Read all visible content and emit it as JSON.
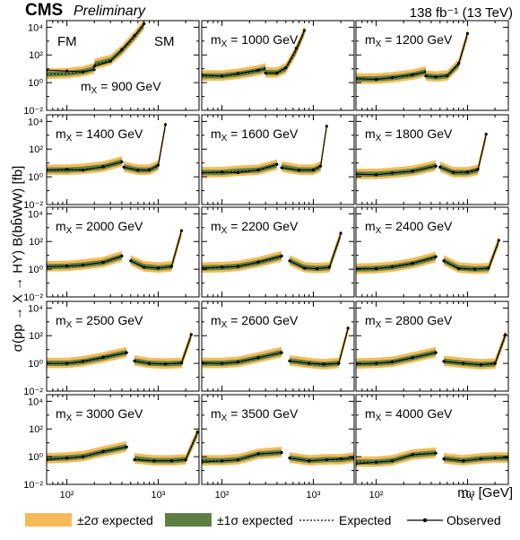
{
  "header": {
    "experiment": "CMS",
    "status": "Preliminary",
    "luminosity": "138 fb⁻¹ (13 TeV)"
  },
  "axes": {
    "ylabel": "σ(pp → X → HY) B(bb̄WW) [fb]",
    "xlabel": "m_Y [GeV]"
  },
  "legend": {
    "two_sigma": "±2σ expected",
    "one_sigma": "±1σ expected",
    "expected": "Expected",
    "observed": "Observed"
  },
  "colors": {
    "two_sigma": "#f5bb58",
    "one_sigma": "#5e7f44",
    "line": "#000000"
  },
  "chart_data": {
    "type": "line",
    "grid": "3 columns x 5 rows of panels",
    "x_scale": "log",
    "y_scale": "log",
    "xlim": [
      60,
      2800
    ],
    "ylim": [
      0.01,
      30000
    ],
    "x_ticks": [
      100,
      1000
    ],
    "x_tick_labels": [
      "10²",
      "10³"
    ],
    "y_ticks": [
      0.01,
      1,
      100,
      10000
    ],
    "y_tick_labels": [
      "10⁻²",
      "10⁰",
      "10²",
      "10⁴"
    ],
    "region_labels": [
      "FM",
      "SM"
    ],
    "panels": [
      {
        "label": "m_X = 900 GeV",
        "mx": 900,
        "fm": {
          "x": [
            60,
            100,
            150,
            200
          ],
          "exp": [
            4,
            4.5,
            6,
            10
          ],
          "obs": [
            8,
            7,
            6,
            9
          ]
        },
        "sm": {
          "x": [
            200,
            300,
            400,
            550,
            700
          ],
          "exp": [
            20,
            40,
            200,
            2000,
            15000
          ],
          "obs": [
            15,
            35,
            250,
            2500,
            18000
          ]
        }
      },
      {
        "label": "m_X = 1000 GeV",
        "mx": 1000,
        "fm": {
          "x": [
            60,
            100,
            150,
            250,
            300
          ],
          "exp": [
            3,
            3,
            4,
            7,
            10
          ],
          "obs": [
            3.5,
            3,
            4.5,
            8,
            10
          ]
        },
        "sm": {
          "x": [
            300,
            400,
            500,
            650,
            800
          ],
          "exp": [
            5,
            5,
            10,
            200,
            5000
          ],
          "obs": [
            5,
            5,
            12,
            300,
            6000
          ]
        }
      },
      {
        "label": "m_X = 1200 GeV",
        "mx": 1200,
        "fm": {
          "x": [
            60,
            100,
            150,
            250,
            350
          ],
          "exp": [
            1.8,
            1.8,
            2.2,
            3.5,
            6
          ],
          "obs": [
            2,
            1.7,
            2.3,
            3.8,
            6
          ]
        },
        "sm": {
          "x": [
            350,
            450,
            600,
            800,
            1000
          ],
          "exp": [
            3,
            2.5,
            3,
            20,
            3000
          ],
          "obs": [
            3,
            2.6,
            3.2,
            25,
            3500
          ]
        }
      },
      {
        "label": "m_X = 1400 GeV",
        "mx": 1400,
        "fm": {
          "x": [
            60,
            100,
            150,
            250,
            400
          ],
          "exp": [
            3,
            3,
            3.5,
            5,
            12
          ],
          "obs": [
            3,
            3.5,
            3,
            5.5,
            12
          ]
        },
        "sm": {
          "x": [
            420,
            600,
            800,
            1000,
            1200
          ],
          "exp": [
            5,
            3,
            3,
            6,
            5000
          ],
          "obs": [
            5,
            3,
            3.2,
            7,
            6000
          ]
        }
      },
      {
        "label": "m_X = 1600 GeV",
        "mx": 1600,
        "fm": {
          "x": [
            60,
            100,
            150,
            250,
            400
          ],
          "exp": [
            2,
            2,
            2.5,
            3,
            7
          ],
          "obs": [
            2,
            2.2,
            2,
            3.2,
            8
          ]
        },
        "sm": {
          "x": [
            450,
            700,
            1000,
            1200,
            1400
          ],
          "exp": [
            5,
            3,
            3,
            5,
            4000
          ],
          "obs": [
            4.5,
            3,
            3.2,
            6,
            4500
          ]
        }
      },
      {
        "label": "m_X = 1800 GeV",
        "mx": 1800,
        "fm": {
          "x": [
            60,
            100,
            150,
            250,
            450
          ],
          "exp": [
            1.5,
            1.5,
            1.8,
            2.5,
            6
          ],
          "obs": [
            1.6,
            1.4,
            1.9,
            2.6,
            6
          ]
        },
        "sm": {
          "x": [
            500,
            700,
            1000,
            1300,
            1600
          ],
          "exp": [
            5,
            2,
            2,
            3,
            1000
          ],
          "obs": [
            5,
            2.1,
            2.2,
            3.5,
            1200
          ]
        }
      },
      {
        "label": "m_X = 2000 GeV",
        "mx": 2000,
        "fm": {
          "x": [
            60,
            100,
            150,
            250,
            400
          ],
          "exp": [
            1.5,
            1.6,
            2,
            3,
            8
          ],
          "obs": [
            1.5,
            1.7,
            2,
            3.2,
            9
          ]
        },
        "sm": {
          "x": [
            500,
            700,
            1000,
            1400,
            1800
          ],
          "exp": [
            4,
            1.5,
            1.2,
            1.5,
            500
          ],
          "obs": [
            4,
            1.4,
            1.2,
            1.6,
            600
          ]
        }
      },
      {
        "label": "m_X = 2200 GeV",
        "mx": 2200,
        "fm": {
          "x": [
            60,
            100,
            150,
            250,
            450
          ],
          "exp": [
            1.2,
            1.3,
            1.6,
            3,
            8
          ],
          "obs": [
            1.2,
            1.4,
            1.6,
            3.3,
            9
          ]
        },
        "sm": {
          "x": [
            550,
            800,
            1100,
            1500,
            2000
          ],
          "exp": [
            4,
            1.3,
            1.1,
            1.3,
            300
          ],
          "obs": [
            4,
            1.2,
            1.1,
            1.4,
            400
          ]
        }
      },
      {
        "label": "m_X = 2400 GeV",
        "mx": 2400,
        "fm": {
          "x": [
            60,
            100,
            150,
            250,
            450
          ],
          "exp": [
            1,
            1.1,
            1.4,
            2.5,
            7
          ],
          "obs": [
            1.1,
            1.1,
            1.5,
            2.7,
            8
          ]
        },
        "sm": {
          "x": [
            550,
            800,
            1200,
            1700,
            2200
          ],
          "exp": [
            4,
            1.2,
            1,
            1.1,
            100
          ],
          "obs": [
            4,
            1.1,
            1,
            1.2,
            120
          ]
        }
      },
      {
        "label": "m_X = 2500 GeV",
        "mx": 2500,
        "fm": {
          "x": [
            60,
            100,
            150,
            250,
            450
          ],
          "exp": [
            1,
            1,
            1.3,
            2.5,
            6
          ],
          "obs": [
            1,
            1,
            1.4,
            2.8,
            6
          ]
        },
        "sm": {
          "x": [
            550,
            800,
            1200,
            1800,
            2300
          ],
          "exp": [
            1.5,
            1,
            0.9,
            1,
            100
          ],
          "obs": [
            1.5,
            1,
            0.9,
            1.1,
            120
          ]
        }
      },
      {
        "label": "m_X = 2600 GeV",
        "mx": 2600,
        "fm": {
          "x": [
            60,
            100,
            150,
            250,
            450
          ],
          "exp": [
            1,
            1,
            1.2,
            2.5,
            6
          ],
          "obs": [
            1.1,
            1,
            1.3,
            2.6,
            6
          ]
        },
        "sm": {
          "x": [
            550,
            900,
            1300,
            1900,
            2400
          ],
          "exp": [
            1.5,
            1,
            0.8,
            1,
            300
          ],
          "obs": [
            1.5,
            1,
            0.9,
            1,
            350
          ]
        }
      },
      {
        "label": "m_X = 2800 GeV",
        "mx": 2800,
        "fm": {
          "x": [
            60,
            100,
            150,
            250,
            450
          ],
          "exp": [
            0.9,
            1,
            1.2,
            2.5,
            6
          ],
          "obs": [
            0.9,
            1,
            1.3,
            2.6,
            6
          ]
        },
        "sm": {
          "x": [
            550,
            900,
            1400,
            2000,
            2600
          ],
          "exp": [
            1.4,
            1,
            0.8,
            0.9,
            100
          ],
          "obs": [
            1.4,
            1,
            0.8,
            1,
            120
          ]
        }
      },
      {
        "label": "m_X = 3000 GeV",
        "mx": 3000,
        "fm": {
          "x": [
            60,
            100,
            150,
            250,
            450
          ],
          "exp": [
            0.7,
            0.8,
            1,
            2.2,
            5
          ],
          "obs": [
            0.6,
            0.8,
            1,
            2.4,
            5
          ]
        },
        "sm": {
          "x": [
            550,
            900,
            1400,
            2000,
            2700
          ],
          "exp": [
            0.7,
            0.5,
            0.5,
            0.6,
            50
          ],
          "obs": [
            0.6,
            0.5,
            0.5,
            0.6,
            60
          ]
        }
      },
      {
        "label": "m_X = 3500 GeV",
        "mx": 3500,
        "fm": {
          "x": [
            60,
            100,
            150,
            250,
            450
          ],
          "exp": [
            0.5,
            0.5,
            0.6,
            1.5,
            2
          ],
          "obs": [
            0.4,
            0.5,
            0.6,
            1.6,
            2
          ]
        },
        "sm": {
          "x": [
            550,
            900,
            1400,
            2000,
            2800
          ],
          "exp": [
            0.8,
            0.5,
            0.6,
            0.6,
            0.8
          ],
          "obs": [
            0.8,
            0.5,
            0.6,
            0.7,
            0.8
          ]
        }
      },
      {
        "label": "m_X = 4000 GeV",
        "mx": 4000,
        "fm": {
          "x": [
            60,
            100,
            150,
            250,
            450
          ],
          "exp": [
            0.4,
            0.4,
            0.5,
            1.3,
            1.8
          ],
          "obs": [
            0.3,
            0.4,
            0.5,
            1.4,
            1.8
          ]
        },
        "sm": {
          "x": [
            550,
            900,
            1400,
            2000,
            2800
          ],
          "exp": [
            0.7,
            0.5,
            0.7,
            0.8,
            0.8
          ],
          "obs": [
            0.7,
            0.5,
            0.7,
            0.8,
            0.9
          ]
        }
      }
    ]
  }
}
